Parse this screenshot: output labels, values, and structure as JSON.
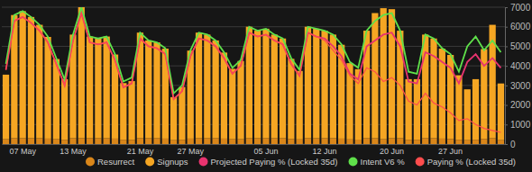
{
  "chart_data": {
    "type": "bar",
    "stacked": true,
    "grid": true,
    "legend": "bottom",
    "categories": [
      null,
      null,
      "07 May",
      null,
      null,
      null,
      null,
      null,
      "13 May",
      null,
      null,
      null,
      null,
      null,
      null,
      null,
      "21 May",
      null,
      null,
      null,
      null,
      null,
      "27 May",
      null,
      null,
      null,
      null,
      null,
      null,
      null,
      null,
      "05 Jun",
      null,
      null,
      null,
      null,
      null,
      null,
      "12 Jun",
      null,
      null,
      null,
      null,
      null,
      null,
      null,
      "20 Jun",
      null,
      null,
      null,
      null,
      null,
      null,
      "27 Jun",
      null,
      null,
      null,
      null,
      null,
      null
    ],
    "ylim": [
      0,
      7000
    ],
    "yticks": [
      0,
      1000,
      2000,
      3000,
      4000,
      5000,
      6000,
      7000
    ],
    "series": [
      {
        "name": "Resurrect",
        "type": "bar",
        "color": "#d9861a",
        "values": [
          250,
          300,
          300,
          300,
          300,
          280,
          250,
          220,
          300,
          300,
          300,
          300,
          300,
          280,
          220,
          220,
          300,
          300,
          300,
          280,
          200,
          220,
          280,
          300,
          300,
          300,
          280,
          250,
          250,
          300,
          300,
          300,
          300,
          300,
          260,
          240,
          300,
          300,
          300,
          300,
          280,
          240,
          230,
          300,
          300,
          250,
          300,
          300,
          220,
          220,
          300,
          300,
          280,
          260,
          220,
          200,
          220,
          260,
          300,
          200
        ]
      },
      {
        "name": "Signups",
        "type": "bar",
        "color": "#f5a623",
        "values": [
          3300,
          6300,
          6500,
          6200,
          5800,
          5200,
          4100,
          3100,
          5300,
          6700,
          5200,
          5100,
          5200,
          4300,
          2900,
          3000,
          5400,
          5000,
          4900,
          4600,
          2200,
          2700,
          4500,
          5400,
          5300,
          5000,
          4400,
          3600,
          4000,
          5700,
          5500,
          5600,
          5300,
          5100,
          4100,
          3500,
          5700,
          5600,
          5500,
          5300,
          4800,
          3900,
          3600,
          5500,
          6400,
          6700,
          6600,
          5500,
          3100,
          3100,
          5300,
          5100,
          4600,
          4300,
          3300,
          2600,
          3100,
          4600,
          5800,
          2900
        ]
      },
      {
        "name": "Projected Paying % (Locked 35d)",
        "type": "line",
        "color": "#e8336f",
        "values": [
          3800,
          6300,
          6500,
          6200,
          5800,
          5200,
          4100,
          3000,
          5300,
          6700,
          5200,
          5100,
          5200,
          4300,
          2900,
          3100,
          5400,
          5000,
          4900,
          4600,
          2300,
          2700,
          4500,
          5400,
          5300,
          5000,
          4400,
          3600,
          4000,
          5700,
          5500,
          5600,
          5300,
          5100,
          4100,
          3500,
          5700,
          5500,
          5400,
          5000,
          4500,
          3600,
          3300,
          5000,
          5300,
          5600,
          5700,
          5000,
          3200,
          3100,
          4700,
          4500,
          4200,
          3900,
          3100,
          4200,
          4600,
          4000,
          4400,
          3900
        ]
      },
      {
        "name": "Intent V6 %",
        "type": "line",
        "color": "#5fe04a",
        "values": [
          4100,
          6600,
          6800,
          6500,
          6100,
          5500,
          4400,
          3300,
          5600,
          7000,
          5500,
          5400,
          5500,
          4600,
          3200,
          3400,
          5700,
          5300,
          5200,
          4900,
          2600,
          3000,
          4800,
          5700,
          5600,
          5300,
          4700,
          3900,
          4300,
          6000,
          5800,
          5900,
          5600,
          5400,
          4400,
          3800,
          6000,
          5900,
          5800,
          5600,
          5100,
          4200,
          3900,
          5800,
          6300,
          6600,
          6700,
          5800,
          3700,
          3600,
          5600,
          5400,
          4900,
          4600,
          3700,
          5000,
          5500,
          4800,
          5300,
          4700
        ]
      },
      {
        "name": "Paying % (Locked 35d)",
        "type": "line",
        "color": "#ff4d4d",
        "values": [
          3800,
          6300,
          6500,
          6200,
          5800,
          5200,
          4100,
          3000,
          5300,
          6700,
          5200,
          5100,
          5200,
          4300,
          2900,
          3100,
          5400,
          5000,
          4900,
          4600,
          2300,
          2700,
          4500,
          5400,
          5300,
          5000,
          4400,
          3600,
          4000,
          5700,
          5500,
          5600,
          5300,
          5100,
          4100,
          3500,
          5700,
          5500,
          5300,
          4800,
          4300,
          3500,
          3100,
          3900,
          3700,
          3200,
          3400,
          3000,
          2200,
          2000,
          2600,
          2100,
          1900,
          1600,
          1200,
          1300,
          1000,
          800,
          700,
          600
        ]
      }
    ]
  }
}
